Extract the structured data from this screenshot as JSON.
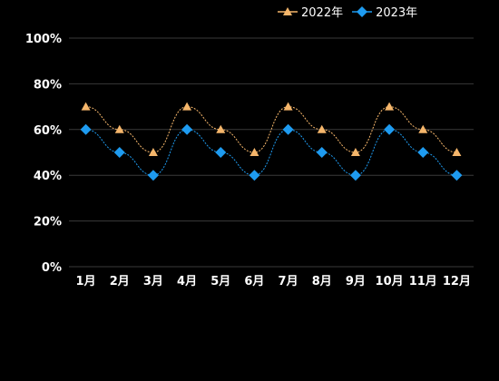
{
  "legend": {
    "s2022": "2022年",
    "s2023": "2023年"
  },
  "colors": {
    "s2022": "#F5B66B",
    "s2023": "#1E9BF0",
    "grid": "#3a3a3a",
    "text": "#ffffff",
    "background": "#000000"
  },
  "chart_data": {
    "type": "line",
    "title": "",
    "xlabel": "",
    "ylabel": "",
    "categories": [
      "1月",
      "2月",
      "3月",
      "4月",
      "5月",
      "6月",
      "7月",
      "8月",
      "9月",
      "10月",
      "11月",
      "12月"
    ],
    "ylim": [
      0,
      100
    ],
    "yticks": [
      "0%",
      "20%",
      "40%",
      "60%",
      "80%",
      "100%"
    ],
    "grid": true,
    "legend_position": "top-right",
    "series": [
      {
        "name": "2022年",
        "marker": "triangle",
        "values": [
          70,
          60,
          50,
          70,
          60,
          50,
          70,
          60,
          50,
          70,
          60,
          50
        ]
      },
      {
        "name": "2023年",
        "marker": "diamond",
        "values": [
          60,
          50,
          40,
          60,
          50,
          40,
          60,
          50,
          40,
          60,
          50,
          40
        ]
      }
    ]
  }
}
